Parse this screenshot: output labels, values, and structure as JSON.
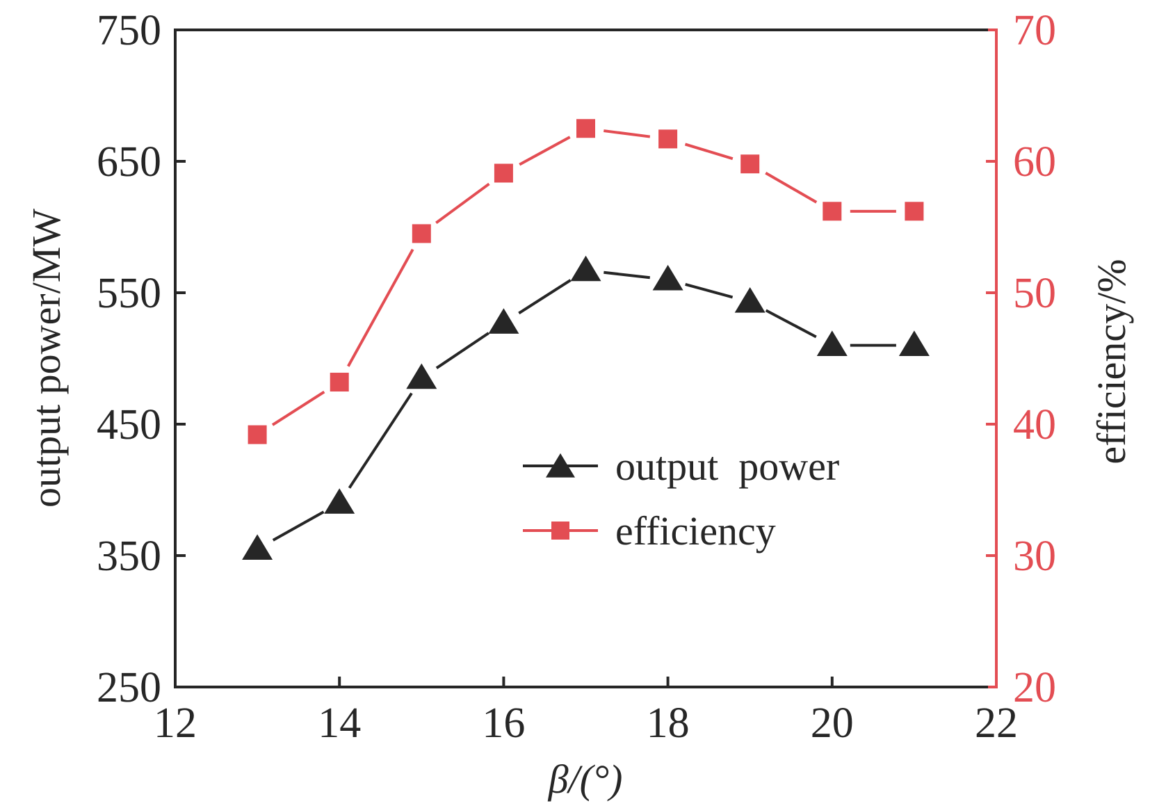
{
  "chart_data": {
    "type": "line",
    "title": "",
    "xlabel": "β/(°)",
    "ylabel": "output power/MW",
    "y2label": "efficiency/%",
    "xlim": [
      12,
      22
    ],
    "ylim": [
      250,
      750
    ],
    "y2lim": [
      20,
      70
    ],
    "grid": false,
    "x_ticks": [
      12,
      14,
      16,
      18,
      20,
      22
    ],
    "y_ticks": [
      250,
      350,
      450,
      550,
      650,
      750
    ],
    "y2_ticks": [
      20,
      30,
      40,
      50,
      60,
      70
    ],
    "x": [
      13,
      14,
      15,
      16,
      17,
      18,
      19,
      20,
      21
    ],
    "series": [
      {
        "name": "output power",
        "axis": "left",
        "marker": "triangle",
        "color": "#262626",
        "values": [
          355,
          390,
          485,
          527,
          567,
          560,
          543,
          510,
          510
        ]
      },
      {
        "name": "efficiency",
        "axis": "right",
        "marker": "square",
        "color": "#e34d53",
        "values": [
          39.2,
          43.2,
          54.5,
          59.1,
          62.5,
          61.7,
          59.8,
          56.2,
          56.2
        ]
      }
    ],
    "legend": {
      "position": "center-right",
      "entries": [
        "output power",
        "efficiency"
      ]
    },
    "colors": {
      "axis": "#262626",
      "right_axis": "#e34d53"
    }
  }
}
